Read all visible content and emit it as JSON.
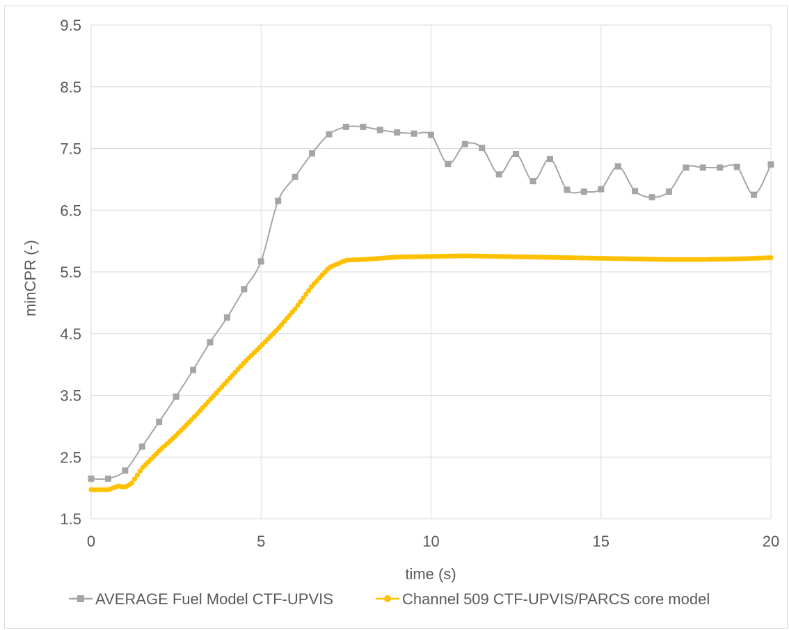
{
  "chart_data": {
    "type": "line",
    "title": "",
    "xlabel": "time (s)",
    "ylabel": "minCPR (-)",
    "xlim": [
      0,
      20
    ],
    "ylim": [
      1.5,
      9.5
    ],
    "x_ticks": [
      0,
      5,
      10,
      15,
      20
    ],
    "x_tick_labels": [
      "0",
      "5",
      "10",
      "15",
      "20"
    ],
    "y_ticks": [
      1.5,
      2.5,
      3.5,
      4.5,
      5.5,
      6.5,
      7.5,
      8.5,
      9.5
    ],
    "y_tick_labels": [
      "1.5",
      "2.5",
      "3.5",
      "4.5",
      "5.5",
      "6.5",
      "7.5",
      "8.5",
      "9.5"
    ],
    "grid": "on",
    "legend_position": "bottom",
    "series": [
      {
        "name": "AVERAGE Fuel Model CTF-UPVIS",
        "color": "#a5a5a5",
        "marker": "square",
        "x": [
          0,
          0.5,
          1,
          1.5,
          2,
          2.5,
          3,
          3.5,
          4,
          4.5,
          5,
          5.5,
          6,
          6.5,
          7,
          7.5,
          8,
          8.5,
          9,
          9.5,
          10,
          10.5,
          11,
          11.5,
          12,
          12.5,
          13,
          13.5,
          14,
          14.5,
          15,
          15.5,
          16,
          16.5,
          17,
          17.5,
          18,
          18.5,
          19,
          19.5,
          20
        ],
        "values": [
          2.15,
          2.15,
          2.28,
          2.67,
          3.07,
          3.48,
          3.91,
          4.36,
          4.76,
          5.22,
          5.67,
          6.65,
          7.04,
          7.42,
          7.73,
          7.85,
          7.85,
          7.8,
          7.76,
          7.74,
          7.72,
          7.25,
          7.57,
          7.51,
          7.08,
          7.41,
          6.97,
          7.33,
          6.83,
          6.8,
          6.84,
          7.21,
          6.81,
          6.71,
          6.8,
          7.19,
          7.19,
          7.19,
          7.2,
          6.75,
          7.24
        ]
      },
      {
        "name": "Channel 509 CTF-UPVIS/PARCS core model",
        "color": "#ffc000",
        "marker": "circle",
        "x": [
          0,
          0.5,
          0.8,
          1.0,
          1.2,
          1.5,
          2.0,
          2.5,
          3.0,
          3.5,
          4.0,
          4.5,
          5.0,
          5.5,
          6.0,
          6.5,
          7.0,
          7.5,
          8.0,
          9.0,
          10.0,
          11.0,
          12.0,
          13.0,
          14.0,
          15.0,
          16.0,
          17.0,
          18.0,
          19.0,
          20.0
        ],
        "values": [
          1.97,
          1.97,
          2.03,
          2.01,
          2.08,
          2.32,
          2.6,
          2.85,
          3.13,
          3.43,
          3.73,
          4.03,
          4.3,
          4.58,
          4.9,
          5.27,
          5.57,
          5.69,
          5.7,
          5.74,
          5.75,
          5.76,
          5.75,
          5.74,
          5.73,
          5.72,
          5.71,
          5.7,
          5.7,
          5.71,
          5.73
        ]
      }
    ]
  }
}
